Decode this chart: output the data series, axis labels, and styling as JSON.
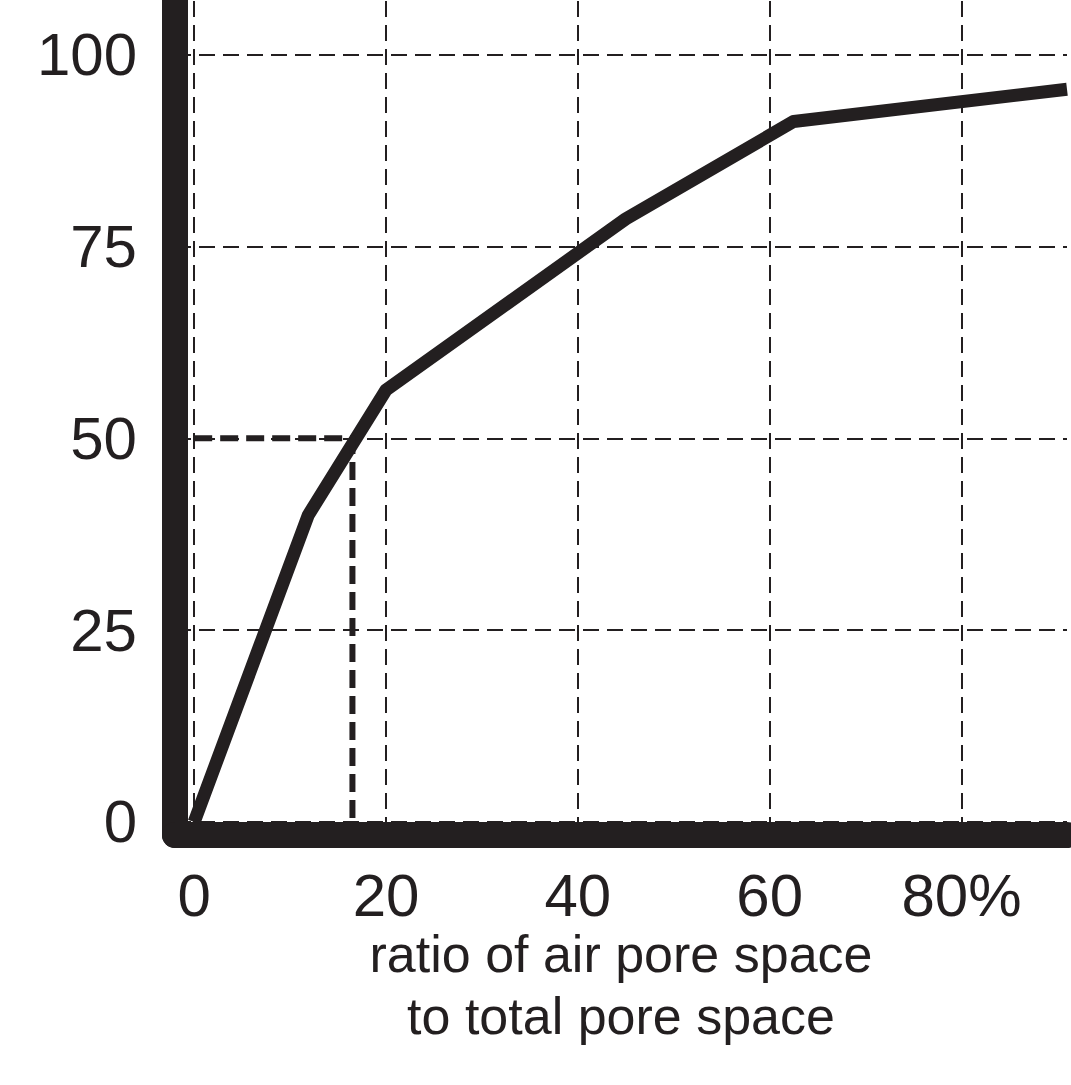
{
  "chart_data": {
    "type": "line",
    "xlabel": "ratio of air pore space to total pore space",
    "xlim": [
      -2,
      91
    ],
    "ylim": [
      -1.7,
      107
    ],
    "xticks": [
      0,
      20,
      40,
      60,
      {
        "value": 80,
        "label": "80%"
      }
    ],
    "yticks": [
      0,
      25,
      50,
      75,
      100
    ],
    "grid": true,
    "marker": "none",
    "series": [
      {
        "color": "#231f20",
        "x": [
          0,
          11.9,
          20,
          45,
          62.5,
          91
        ],
        "values": [
          0,
          40,
          56.3,
          78.6,
          91.3,
          95.5
        ],
        "line_style": "solid"
      },
      {
        "color": "#231f20",
        "x": [
          0,
          16.5,
          16.5
        ],
        "values": [
          50,
          50,
          0
        ],
        "line_style": "dashed"
      }
    ]
  }
}
